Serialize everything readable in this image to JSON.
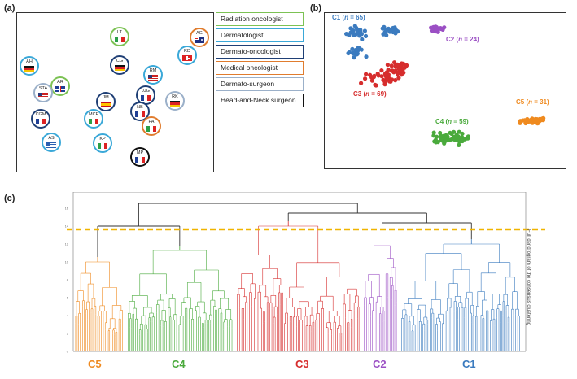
{
  "panels": {
    "a": "(a)",
    "b": "(b)",
    "c": "(c)"
  },
  "colors": {
    "radiation": "#7cc254",
    "dermatologist": "#3aa8d8",
    "dermato_oncologist": "#1f3f75",
    "medical": "#e07c2e",
    "dermato_surgeon": "#9bb0c9",
    "head_neck": "#111111",
    "C1": "#3b7bbf",
    "C2": "#9b4fc4",
    "C3": "#d62d2d",
    "C4": "#4aaa3c",
    "C5": "#ef8a1f",
    "cutline": "#f0b400"
  },
  "legend": [
    {
      "label": "Radiation oncologist",
      "role": "radiation"
    },
    {
      "label": "Dermatologist",
      "role": "dermatologist"
    },
    {
      "label": "Dermato-oncologist",
      "role": "dermato_oncologist"
    },
    {
      "label": "Medical oncologist",
      "role": "medical"
    },
    {
      "label": "Dermato-surgeon",
      "role": "dermato_surgeon"
    },
    {
      "label": "Head-and-Neck surgeon",
      "role": "head_neck"
    }
  ],
  "experts": [
    {
      "code": "LT",
      "role": "radiation",
      "flag": "italy"
    },
    {
      "code": "AG",
      "role": "medical",
      "flag": "australia"
    },
    {
      "code": "RD",
      "role": "dermatologist",
      "flag": "switzerland"
    },
    {
      "code": "AH",
      "role": "dermatologist",
      "flag": "germany"
    },
    {
      "code": "CG",
      "role": "dermato_oncologist",
      "flag": "germany"
    },
    {
      "code": "RM",
      "role": "dermatologist",
      "flag": "usa"
    },
    {
      "code": "AR",
      "role": "radiation",
      "flag": "uk"
    },
    {
      "code": "STA",
      "role": "dermato_surgeon",
      "flag": "usa"
    },
    {
      "code": "JM",
      "role": "dermato_oncologist",
      "flag": "spain"
    },
    {
      "code": "JJG",
      "role": "dermato_oncologist",
      "flag": "france"
    },
    {
      "code": "RK",
      "role": "dermato_surgeon",
      "flag": "germany"
    },
    {
      "code": "NB",
      "role": "dermato_oncologist",
      "flag": "france"
    },
    {
      "code": "CGM",
      "role": "dermato_oncologist",
      "flag": "france"
    },
    {
      "code": "MCF",
      "role": "dermatologist",
      "flag": "italy"
    },
    {
      "code": "PA",
      "role": "medical",
      "flag": "italy"
    },
    {
      "code": "AS",
      "role": "dermatologist",
      "flag": "greece"
    },
    {
      "code": "KP",
      "role": "dermatologist",
      "flag": "italy"
    },
    {
      "code": "MP",
      "role": "head_neck",
      "flag": "france"
    }
  ],
  "scatter": {
    "clusters": [
      {
        "id": "C1",
        "label_pre": "C1 (",
        "label_n": "n",
        "label_post": " = 65)",
        "n": 65
      },
      {
        "id": "C2",
        "label_pre": "C2 (",
        "label_n": "n",
        "label_post": " = 24)",
        "n": 24
      },
      {
        "id": "C3",
        "label_pre": "C3 (",
        "label_n": "n",
        "label_post": " = 69)",
        "n": 69
      },
      {
        "id": "C4",
        "label_pre": "C4 (",
        "label_n": "n",
        "label_post": " = 59)",
        "n": 59
      },
      {
        "id": "C5",
        "label_pre": "C5 (",
        "label_n": "n",
        "label_post": " = 31)",
        "n": 31
      }
    ]
  },
  "dendrogram": {
    "order": [
      "C5",
      "C4",
      "C3",
      "C2",
      "C1"
    ],
    "bottom_labels": [
      "C5",
      "C4",
      "C3",
      "C2",
      "C1"
    ],
    "ytick_labels": [
      "0",
      "2",
      "4",
      "6",
      "8",
      "10",
      "12",
      "14",
      "16"
    ],
    "side_label": "Full dendrogram of the consensus clustering"
  }
}
